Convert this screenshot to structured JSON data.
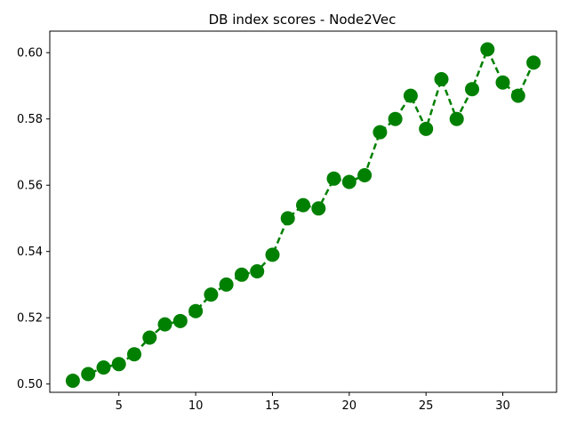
{
  "chart_data": {
    "type": "line",
    "title": "DB index scores - Node2Vec",
    "xlabel": "",
    "ylabel": "",
    "x": [
      2,
      3,
      4,
      5,
      6,
      7,
      8,
      9,
      10,
      11,
      12,
      13,
      14,
      15,
      16,
      17,
      18,
      19,
      20,
      21,
      22,
      23,
      24,
      25,
      26,
      27,
      28,
      29,
      30,
      31,
      32
    ],
    "series": [
      {
        "values": [
          0.501,
          0.503,
          0.505,
          0.506,
          0.509,
          0.514,
          0.518,
          0.519,
          0.522,
          0.527,
          0.53,
          0.533,
          0.534,
          0.539,
          0.55,
          0.554,
          0.553,
          0.562,
          0.561,
          0.563,
          0.576,
          0.58,
          0.587,
          0.577,
          0.592,
          0.58,
          0.589,
          0.601,
          0.591,
          0.587,
          0.597
        ],
        "color": "#008000",
        "line_style": "dashed",
        "marker": "circle"
      }
    ],
    "xlim": [
      0.5,
      33.5
    ],
    "ylim": [
      0.4975,
      0.6065
    ],
    "xticks": [
      5,
      10,
      15,
      20,
      25,
      30
    ],
    "yticks": [
      0.5,
      0.52,
      0.54,
      0.56,
      0.58,
      0.6
    ],
    "ytick_labels": [
      "0.50",
      "0.52",
      "0.54",
      "0.56",
      "0.58",
      "0.60"
    ],
    "grid": false,
    "legend": false
  }
}
